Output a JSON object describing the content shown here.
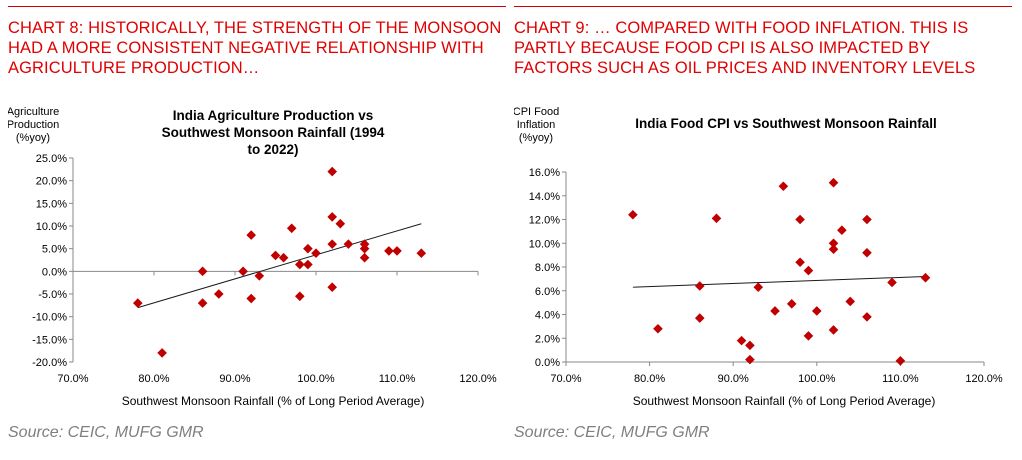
{
  "panels": [
    {
      "headline": "CHART 8: HISTORICALLY, THE STRENGTH OF THE MONSOON HAD A MORE CONSISTENT NEGATIVE RELATIONSHIP WITH AGRICULTURE PRODUCTION…",
      "source": "Source: CEIC, MUFG GMR"
    },
    {
      "headline": "CHART 9: … COMPARED WITH FOOD INFLATION. THIS IS PARTLY BECAUSE FOOD CPI IS ALSO IMPACTED BY FACTORS SUCH AS OIL PRICES AND INVENTORY LEVELS",
      "source": "Source: CEIC, MUFG GMR"
    }
  ],
  "chart_data": [
    {
      "type": "scatter",
      "title": "India Agriculture Production vs Southwest Monsoon Rainfall (1994 to 2022)",
      "ylabel": "Agriculture Production (%yoy)",
      "xlabel": "Southwest Monsoon Rainfall (% of Long Period Average)",
      "xlim": [
        70,
        120
      ],
      "ylim": [
        -20,
        25
      ],
      "x_ticks": [
        "70.0%",
        "80.0%",
        "90.0%",
        "100.0%",
        "110.0%",
        "120.0%"
      ],
      "y_ticks": [
        "-20.0%",
        "-15.0%",
        "-10.0%",
        "-5.0%",
        "0.0%",
        "5.0%",
        "10.0%",
        "15.0%",
        "20.0%",
        "25.0%"
      ],
      "marker_color": "#c00000",
      "trendline": [
        [
          78,
          -8
        ],
        [
          113,
          10.5
        ]
      ],
      "points": [
        [
          78,
          -7
        ],
        [
          81,
          -18
        ],
        [
          86,
          -7
        ],
        [
          86,
          0
        ],
        [
          88,
          -5
        ],
        [
          91,
          0
        ],
        [
          92,
          -6
        ],
        [
          92,
          8
        ],
        [
          93,
          -1
        ],
        [
          95,
          3.5
        ],
        [
          96,
          3
        ],
        [
          97,
          9.5
        ],
        [
          98,
          1.5
        ],
        [
          98,
          -5.5
        ],
        [
          99,
          5
        ],
        [
          99,
          1.5
        ],
        [
          100,
          4
        ],
        [
          102,
          22
        ],
        [
          102,
          12
        ],
        [
          102,
          6
        ],
        [
          102,
          -3.5
        ],
        [
          103,
          10.5
        ],
        [
          104,
          6
        ],
        [
          106,
          6
        ],
        [
          106,
          5
        ],
        [
          106,
          3
        ],
        [
          109,
          4.5
        ],
        [
          110,
          4.5
        ],
        [
          113,
          4
        ]
      ]
    },
    {
      "type": "scatter",
      "title": "India Food CPI vs Southwest Monsoon Rainfall",
      "ylabel": "CPI Food Inflation (%yoy)",
      "xlabel": "Southwest Monsoon Rainfall (% of Long Period Average)",
      "xlim": [
        70,
        120
      ],
      "ylim": [
        0,
        16
      ],
      "x_ticks": [
        "70.0%",
        "80.0%",
        "90.0%",
        "100.0%",
        "110.0%",
        "120.0%"
      ],
      "y_ticks": [
        "0.0%",
        "2.0%",
        "4.0%",
        "6.0%",
        "8.0%",
        "10.0%",
        "12.0%",
        "14.0%",
        "16.0%"
      ],
      "marker_color": "#c00000",
      "trendline": [
        [
          78,
          6.3
        ],
        [
          113,
          7.2
        ]
      ],
      "points": [
        [
          78,
          12.4
        ],
        [
          81,
          2.8
        ],
        [
          86,
          6.4
        ],
        [
          86,
          3.7
        ],
        [
          88,
          12.1
        ],
        [
          91,
          1.8
        ],
        [
          92,
          1.4
        ],
        [
          92,
          0.2
        ],
        [
          93,
          6.3
        ],
        [
          95,
          4.3
        ],
        [
          96,
          14.8
        ],
        [
          97,
          4.9
        ],
        [
          98,
          12
        ],
        [
          98,
          8.4
        ],
        [
          99,
          7.7
        ],
        [
          99,
          2.2
        ],
        [
          100,
          4.3
        ],
        [
          102,
          15.1
        ],
        [
          102,
          10
        ],
        [
          102,
          9.5
        ],
        [
          102,
          2.7
        ],
        [
          103,
          11.1
        ],
        [
          104,
          5.1
        ],
        [
          106,
          12
        ],
        [
          106,
          9.2
        ],
        [
          106,
          3.8
        ],
        [
          109,
          6.7
        ],
        [
          110,
          0.1
        ],
        [
          113,
          7.1
        ]
      ]
    }
  ]
}
